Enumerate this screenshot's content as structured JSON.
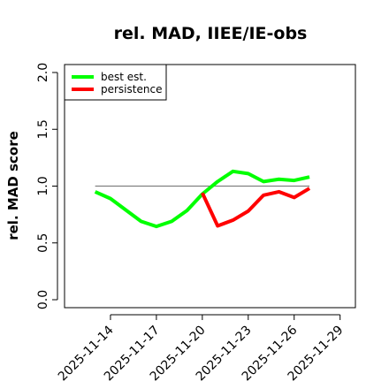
{
  "chart_data": {
    "type": "line",
    "title": "rel. MAD, IIEE/IE-obs",
    "y_label": "rel. MAD score",
    "x": [
      "2025-11-13",
      "2025-11-14",
      "2025-11-15",
      "2025-11-16",
      "2025-11-17",
      "2025-11-18",
      "2025-11-19",
      "2025-11-20",
      "2025-11-21",
      "2025-11-22",
      "2025-11-23",
      "2025-11-24",
      "2025-11-25",
      "2025-11-26",
      "2025-11-27"
    ],
    "series": [
      {
        "name": "best est.",
        "color": "#00ff00",
        "values": [
          0.95,
          0.89,
          0.79,
          0.69,
          0.645,
          0.69,
          0.785,
          0.93,
          1.04,
          1.13,
          1.11,
          1.04,
          1.06,
          1.05,
          1.08
        ]
      },
      {
        "name": "persistence",
        "color": "#ff0000",
        "values": [
          null,
          null,
          null,
          null,
          null,
          null,
          null,
          0.94,
          0.65,
          0.7,
          0.78,
          0.92,
          0.95,
          0.9,
          0.98
        ]
      }
    ],
    "reference_line": 1.0,
    "reference_color": "#808080",
    "xlim": [
      "2025-11-11",
      "2025-11-30"
    ],
    "xticks": [
      "2025-11-14",
      "2025-11-17",
      "2025-11-20",
      "2025-11-23",
      "2025-11-26",
      "2025-11-29"
    ],
    "ylim": [
      -0.07,
      2.07
    ],
    "yticks": [
      {
        "value": 0,
        "label": "0.0"
      },
      {
        "value": 0.5,
        "label": "0.5"
      },
      {
        "value": 1,
        "label": "1.0"
      },
      {
        "value": 1.5,
        "label": "1.5"
      },
      {
        "value": 2,
        "label": "2.0"
      }
    ],
    "legend": "top-left"
  }
}
